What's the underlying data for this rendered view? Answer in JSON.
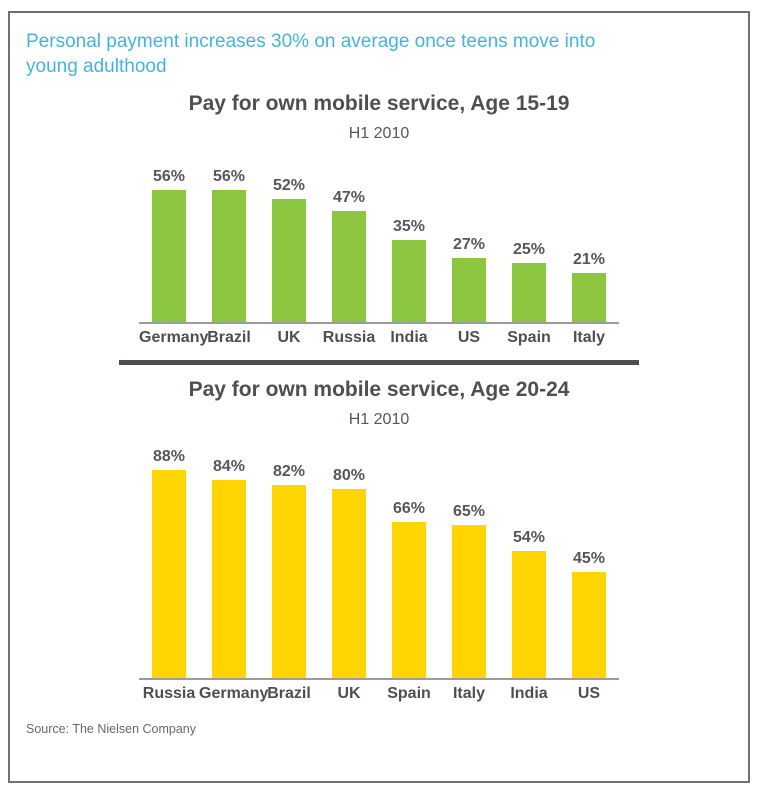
{
  "header": {
    "text": "Personal payment increases 30% on average once teens move into young adulthood"
  },
  "chart_data": [
    {
      "type": "bar",
      "title": "Pay for own mobile service, Age 15-19",
      "subtitle": "H1 2010",
      "categories": [
        "Germany",
        "Brazil",
        "UK",
        "Russia",
        "India",
        "US",
        "Spain",
        "Italy"
      ],
      "values": [
        56,
        56,
        52,
        47,
        35,
        27,
        25,
        21
      ],
      "value_labels": [
        "56%",
        "56%",
        "52%",
        "47%",
        "35%",
        "27%",
        "25%",
        "21%"
      ],
      "unit": "%",
      "bar_color": "#8cc640",
      "ylim": [
        0,
        100
      ],
      "grid": false,
      "legend": "none",
      "xlabel": "",
      "ylabel": ""
    },
    {
      "type": "bar",
      "title": "Pay for own mobile service, Age 20-24",
      "subtitle": "H1 2010",
      "categories": [
        "Russia",
        "Germany",
        "Brazil",
        "UK",
        "Spain",
        "Italy",
        "India",
        "US"
      ],
      "values": [
        88,
        84,
        82,
        80,
        66,
        65,
        54,
        45
      ],
      "value_labels": [
        "88%",
        "84%",
        "82%",
        "80%",
        "66%",
        "65%",
        "54%",
        "45%"
      ],
      "unit": "%",
      "bar_color": "#ffd504",
      "ylim": [
        0,
        100
      ],
      "grid": false,
      "legend": "none",
      "xlabel": "",
      "ylabel": ""
    }
  ],
  "source": {
    "text": "Source: The Nielsen Company"
  },
  "colors": {
    "headline_blue": "#45b4dc",
    "title_gray": "#4d4f53",
    "axis_line_gray": "#9b9b9b",
    "divider_gray": "#4a4d52",
    "green_bar": "#8cc640",
    "yellow_bar": "#ffd504"
  }
}
